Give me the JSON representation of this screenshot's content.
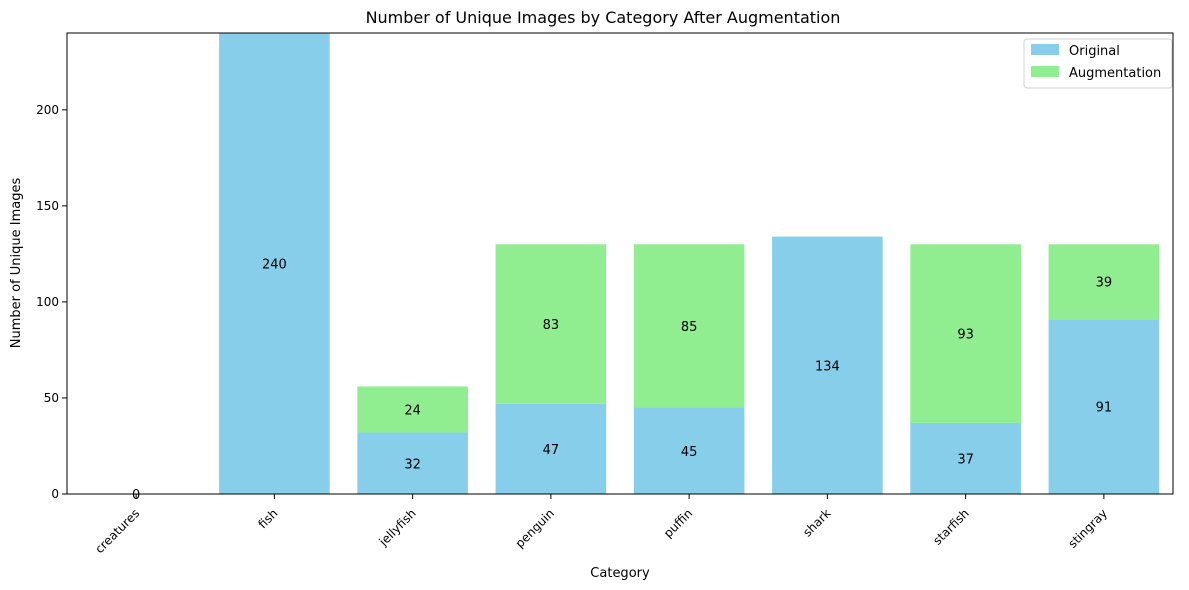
{
  "chart_data": {
    "type": "bar",
    "stacked": true,
    "title": "Number of Unique Images by Category After Augmentation",
    "xlabel": "Category",
    "ylabel": "Number of Unique Images",
    "categories": [
      "creatures",
      "fish",
      "jellyfish",
      "penguin",
      "puffin",
      "shark",
      "starfish",
      "stingray"
    ],
    "series": [
      {
        "name": "Original",
        "color": "#87CEEB",
        "values": [
          0,
          240,
          32,
          47,
          45,
          134,
          37,
          91
        ],
        "labels": [
          "0",
          "240",
          "32",
          "47",
          "45",
          "134",
          "37",
          "91"
        ]
      },
      {
        "name": "Augmentation",
        "color": "#90EE90",
        "values": [
          0,
          0,
          24,
          83,
          85,
          0,
          93,
          39
        ],
        "labels": [
          "",
          "",
          "24",
          "83",
          "85",
          "",
          "93",
          "39"
        ]
      }
    ],
    "ylim": [
      0,
      240
    ],
    "yticks": [
      0,
      50,
      100,
      150,
      200
    ],
    "grid": false,
    "legend_position": "top-right"
  }
}
